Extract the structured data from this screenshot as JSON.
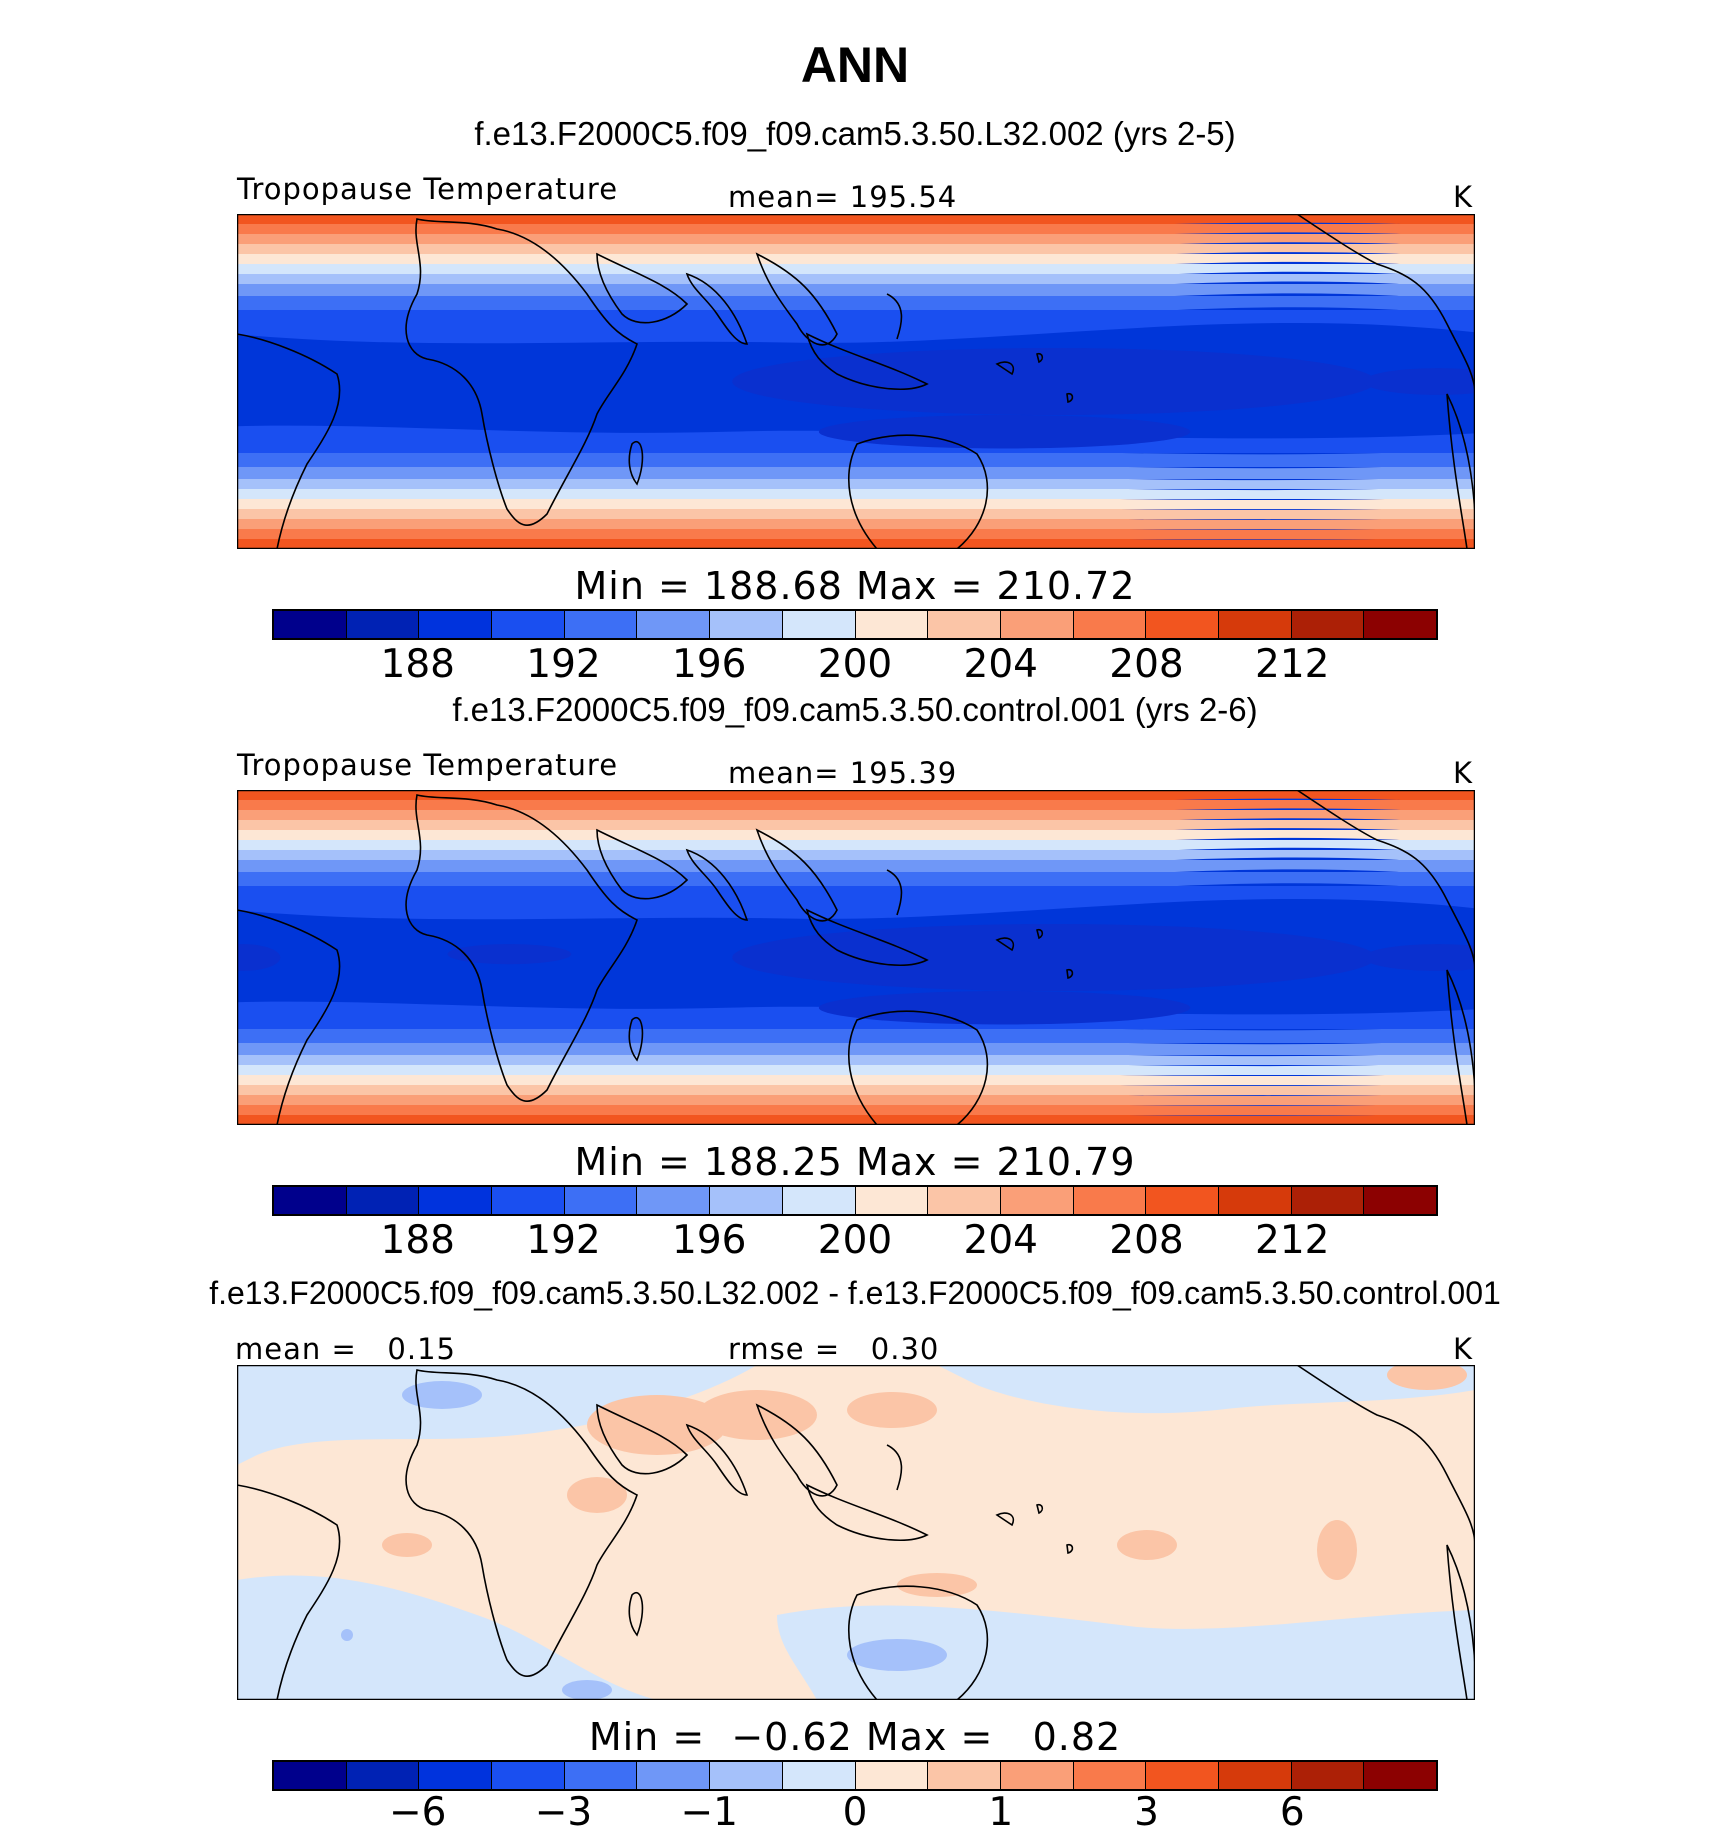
{
  "title": "ANN",
  "panels": [
    {
      "case": "f.e13.F2000C5.f09_f09.cam5.3.50.L32.002 (yrs 2-5)",
      "left_label": "Tropopause Temperature",
      "center_label": "mean= 195.54",
      "units": "K",
      "minmax": "Min = 188.68 Max = 210.72",
      "ticks": [
        "188",
        "192",
        "196",
        "200",
        "204",
        "208",
        "212"
      ],
      "field": "temperature"
    },
    {
      "case": "f.e13.F2000C5.f09_f09.cam5.3.50.control.001 (yrs 2-6)",
      "left_label": "Tropopause Temperature",
      "center_label": "mean= 195.39",
      "units": "K",
      "minmax": "Min = 188.25 Max = 210.79",
      "ticks": [
        "188",
        "192",
        "196",
        "200",
        "204",
        "208",
        "212"
      ],
      "field": "temperature"
    },
    {
      "case": "f.e13.F2000C5.f09_f09.cam5.3.50.L32.002 - f.e13.F2000C5.f09_f09.cam5.3.50.control.001",
      "left_label": "mean =   0.15",
      "center_label": "rmse =   0.30",
      "units": "K",
      "minmax": "Min =  −0.62 Max =   0.82",
      "ticks": [
        "−6",
        "−3",
        "−1",
        "0",
        "1",
        "3",
        "6"
      ],
      "field": "difference"
    }
  ],
  "colorbar_colors": [
    "#00008c",
    "#0022b4",
    "#0033dd",
    "#1a4ff0",
    "#3d6ff5",
    "#6f97f7",
    "#a5c1fa",
    "#d4e6fb",
    "#fde7d5",
    "#fbc5a7",
    "#fa9f78",
    "#f97a4b",
    "#f2551f",
    "#d63a0b",
    "#ac2006",
    "#8c0101"
  ],
  "colors": {
    "deep_blue": "#0036d9",
    "mid_blue": "#1a4ff0",
    "light_blue": "#d4e6fb",
    "light_peach": "#fde7d5",
    "orange": "#f2551f",
    "coast": "#000000"
  },
  "icons": {
    "map": "world-map-coastlines"
  }
}
